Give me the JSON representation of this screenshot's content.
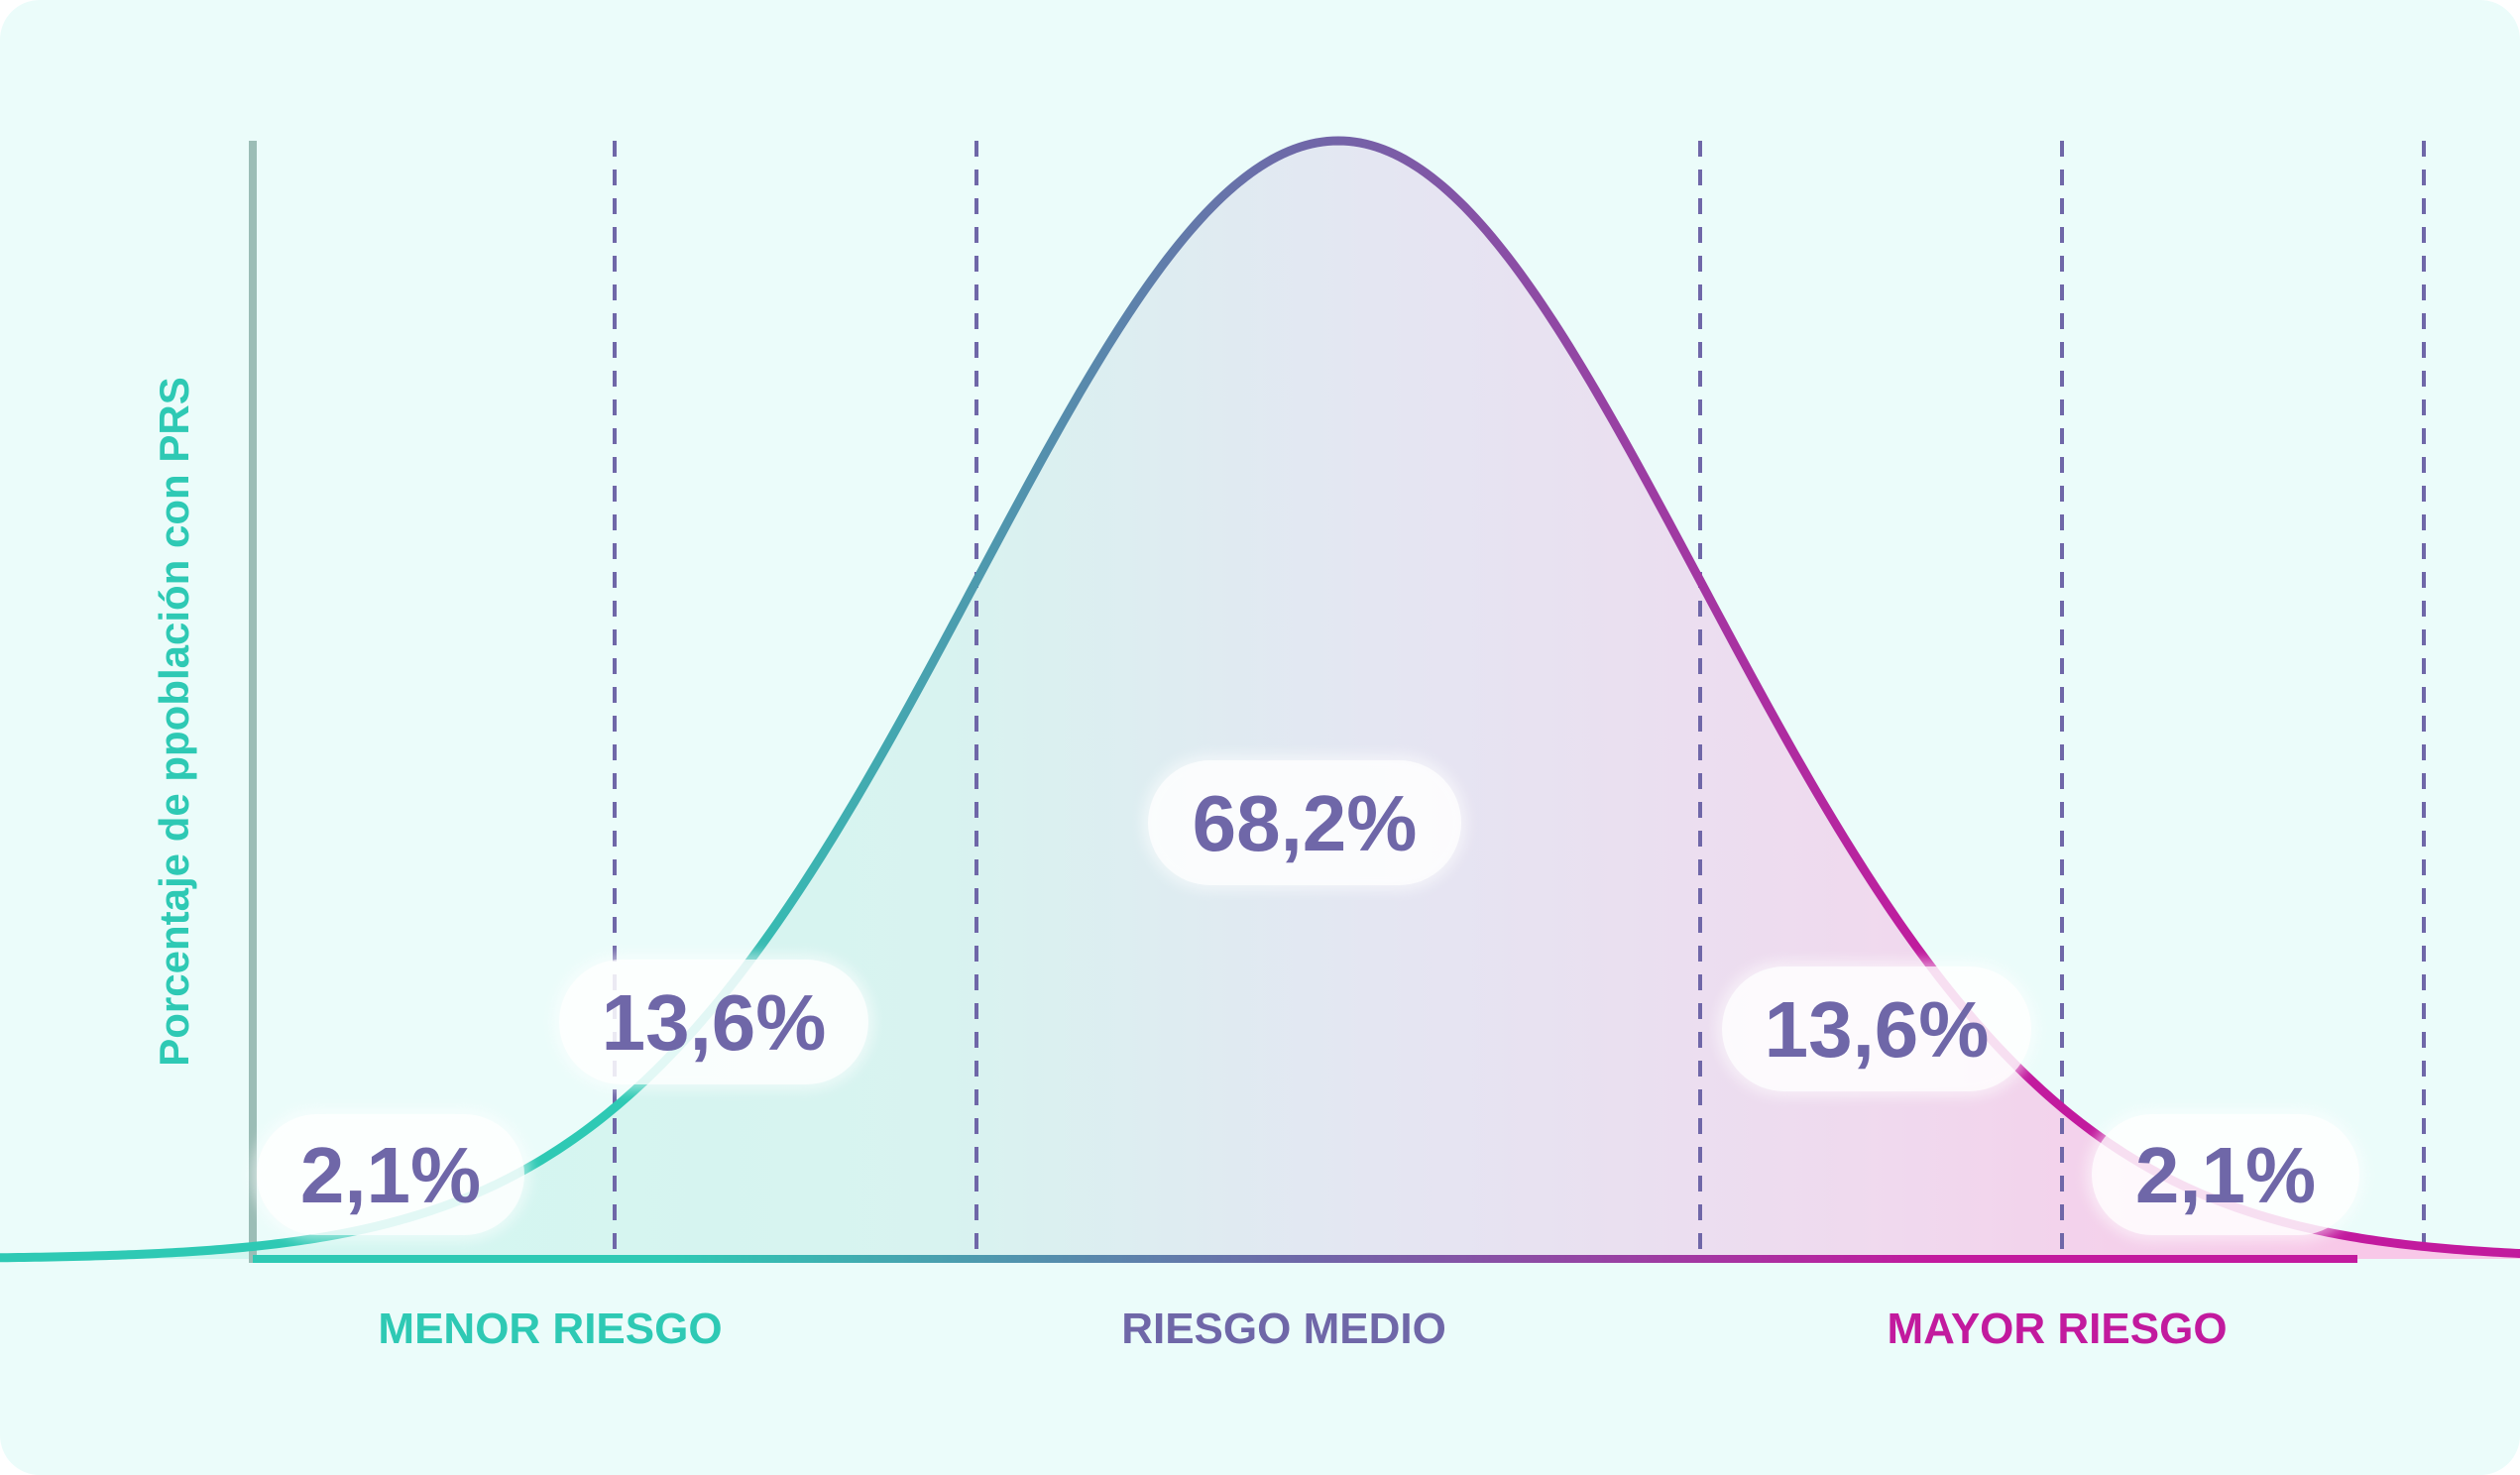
{
  "chart_data": {
    "type": "area",
    "title": "",
    "ylabel": "Porcentaje de ppoblación con PRS",
    "xlabel": "",
    "distribution": "normal",
    "sigma_boundaries": [
      -3,
      -2,
      -1,
      1,
      2,
      3
    ],
    "x_range": [
      -3.8,
      3.8
    ],
    "grid": false,
    "legend": "none",
    "bands": [
      {
        "label": "2,1%",
        "value": 2.1
      },
      {
        "label": "13,6%",
        "value": 13.6
      },
      {
        "label": "68,2%",
        "value": 68.2
      },
      {
        "label": "13,6%",
        "value": 13.6
      },
      {
        "label": "2,1%",
        "value": 2.1
      }
    ],
    "categories": [
      {
        "label": "MENOR RIESGO",
        "color": "#2ec9b4"
      },
      {
        "label": "RIESGO MEDIO",
        "color": "#6f67a8"
      },
      {
        "label": "MAYOR RIESGO",
        "color": "#c21a9e"
      }
    ],
    "colors": {
      "background": "#ebfcfa",
      "axis": "#9bbdb6",
      "dashed_lines": "#6f67a8",
      "pill_text": "#6f67a8",
      "gradient_start": "#2ec9b4",
      "gradient_mid": "#6f67a8",
      "gradient_end": "#c21a9e"
    }
  }
}
